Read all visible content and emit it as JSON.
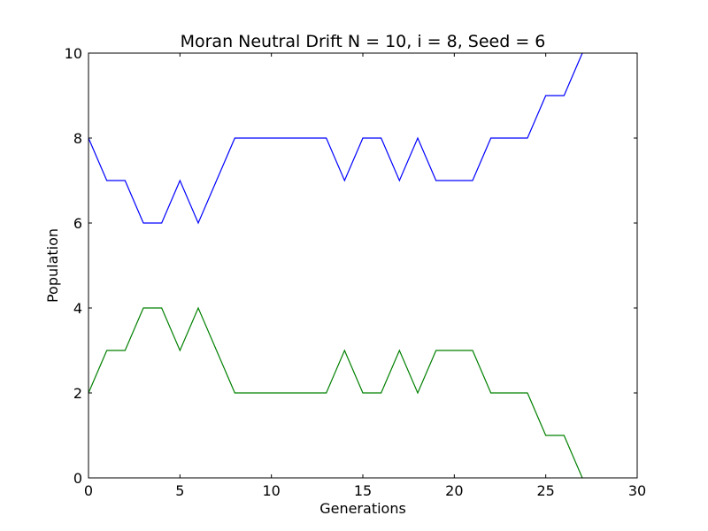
{
  "chart_data": {
    "type": "line",
    "title": "Moran Neutral Drift N = 10, i = 8, Seed = 6",
    "xlabel": "Generations",
    "ylabel": "Population",
    "xlim": [
      0,
      30
    ],
    "ylim": [
      0,
      10
    ],
    "xticks": [
      0,
      5,
      10,
      15,
      20,
      25,
      30
    ],
    "yticks": [
      0,
      2,
      4,
      6,
      8,
      10
    ],
    "xtick_labels": [
      "0",
      "5",
      "10",
      "15",
      "20",
      "25",
      "30"
    ],
    "ytick_labels": [
      "0",
      "2",
      "4",
      "6",
      "8",
      "10"
    ],
    "grid": false,
    "legend": false,
    "x": [
      0,
      1,
      2,
      3,
      4,
      5,
      6,
      7,
      8,
      9,
      10,
      11,
      12,
      13,
      14,
      15,
      16,
      17,
      18,
      19,
      20,
      21,
      22,
      23,
      24,
      25,
      26,
      27
    ],
    "series": [
      {
        "color": "#0000ff",
        "values": [
          8,
          7,
          7,
          6,
          6,
          7,
          6,
          7,
          8,
          8,
          8,
          8,
          8,
          8,
          7,
          8,
          8,
          7,
          8,
          7,
          7,
          7,
          8,
          8,
          8,
          9,
          9,
          10
        ]
      },
      {
        "color": "#008000",
        "values": [
          2,
          3,
          3,
          4,
          4,
          3,
          4,
          3,
          2,
          2,
          2,
          2,
          2,
          2,
          3,
          2,
          2,
          3,
          2,
          3,
          3,
          3,
          2,
          2,
          2,
          1,
          1,
          0
        ]
      }
    ]
  }
}
